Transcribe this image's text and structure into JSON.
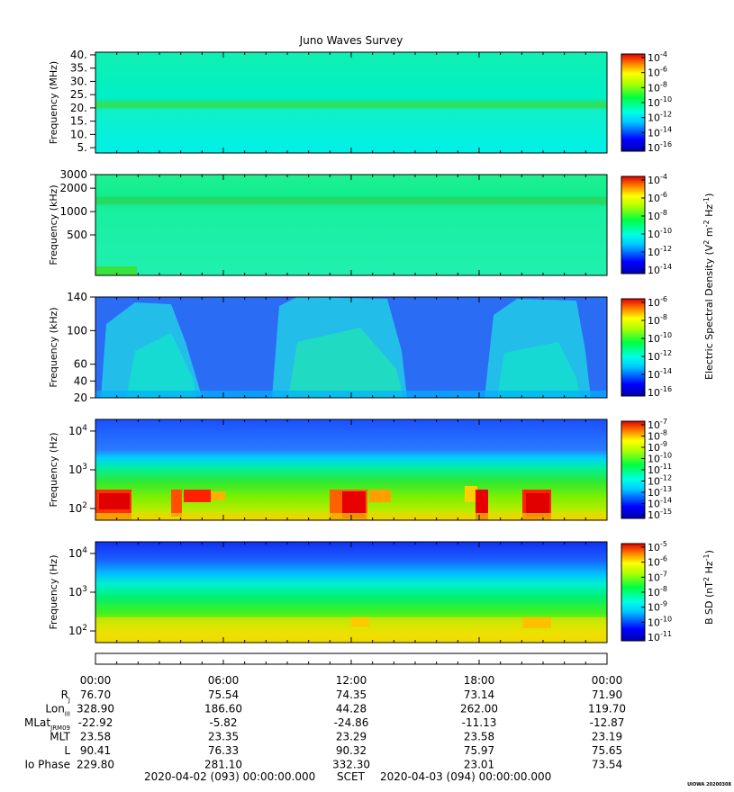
{
  "chart_data": {
    "type": "heatmap",
    "title": "Juno Waves Survey",
    "stamp": "UIOWA 20200308",
    "panels": [
      {
        "ylabel": "Frequency (MHz)",
        "yticks": [
          "40.",
          "35.",
          "30.",
          "25.",
          "20.",
          "15.",
          "10.",
          "5."
        ],
        "ytick_values": [
          40,
          35,
          30,
          25,
          20,
          15,
          10,
          5
        ],
        "ylim": [
          3,
          41
        ],
        "scale": "linear",
        "colorbar": {
          "ticks": [
            {
              "base": "10",
              "exp": "-4"
            },
            {
              "base": "10",
              "exp": "-6"
            },
            {
              "base": "10",
              "exp": "-8"
            },
            {
              "base": "10",
              "exp": "-10"
            },
            {
              "base": "10",
              "exp": "-12"
            },
            {
              "base": "10",
              "exp": "-14"
            },
            {
              "base": "10",
              "exp": "-16"
            }
          ]
        }
      },
      {
        "ylabel": "Frequency (kHz)",
        "yticks": [
          "3000",
          "2000",
          "1000",
          "500"
        ],
        "ytick_values": [
          3000,
          2000,
          1000,
          500
        ],
        "ylim": [
          150,
          3000
        ],
        "scale": "log",
        "colorbar": {
          "ticks": [
            {
              "base": "10",
              "exp": "-4"
            },
            {
              "base": "10",
              "exp": "-6"
            },
            {
              "base": "10",
              "exp": "-8"
            },
            {
              "base": "10",
              "exp": "-10"
            },
            {
              "base": "10",
              "exp": "-12"
            },
            {
              "base": "10",
              "exp": "-14"
            }
          ]
        }
      },
      {
        "ylabel": "Frequency (kHz)",
        "yticks": [
          "140",
          "100",
          "60",
          "40",
          "20"
        ],
        "ytick_values": [
          140,
          100,
          60,
          40,
          20
        ],
        "ylim": [
          20,
          140
        ],
        "scale": "linear",
        "colorbar": {
          "ticks": [
            {
              "base": "10",
              "exp": "-6"
            },
            {
              "base": "10",
              "exp": "-8"
            },
            {
              "base": "10",
              "exp": "-10"
            },
            {
              "base": "10",
              "exp": "-12"
            },
            {
              "base": "10",
              "exp": "-14"
            },
            {
              "base": "10",
              "exp": "-16"
            }
          ]
        }
      },
      {
        "ylabel": "Frequency (Hz)",
        "yticks": [
          {
            "base": "10",
            "exp": "4"
          },
          {
            "base": "10",
            "exp": "3"
          },
          {
            "base": "10",
            "exp": "2"
          }
        ],
        "ytick_values": [
          10000,
          1000,
          100
        ],
        "ylim": [
          50,
          20000
        ],
        "scale": "log",
        "colorbar": {
          "ticks": [
            {
              "base": "10",
              "exp": "-7"
            },
            {
              "base": "10",
              "exp": "-8"
            },
            {
              "base": "10",
              "exp": "-9"
            },
            {
              "base": "10",
              "exp": "-10"
            },
            {
              "base": "10",
              "exp": "-11"
            },
            {
              "base": "10",
              "exp": "-12"
            },
            {
              "base": "10",
              "exp": "-13"
            },
            {
              "base": "10",
              "exp": "-14"
            },
            {
              "base": "10",
              "exp": "-15"
            }
          ]
        }
      },
      {
        "ylabel": "Frequency (Hz)",
        "yticks": [
          {
            "base": "10",
            "exp": "4"
          },
          {
            "base": "10",
            "exp": "3"
          },
          {
            "base": "10",
            "exp": "2"
          }
        ],
        "ytick_values": [
          10000,
          1000,
          100
        ],
        "ylim": [
          50,
          20000
        ],
        "scale": "log",
        "colorbar": {
          "ticks": [
            {
              "base": "10",
              "exp": "-5"
            },
            {
              "base": "10",
              "exp": "-6"
            },
            {
              "base": "10",
              "exp": "-7"
            },
            {
              "base": "10",
              "exp": "-8"
            },
            {
              "base": "10",
              "exp": "-9"
            },
            {
              "base": "10",
              "exp": "-10"
            },
            {
              "base": "10",
              "exp": "-11"
            }
          ]
        }
      }
    ],
    "colorbar_label_e": "Electric Spectral Density (V",
    "colorbar_label_b": "B SD (nT",
    "x_time_labels": [
      "00:00",
      "06:00",
      "12:00",
      "18:00",
      "00:00"
    ],
    "x_hours": [
      0,
      6,
      12,
      18,
      24
    ],
    "ephemeris": [
      {
        "label": "R",
        "sub": "J",
        "values": [
          "76.70",
          "75.54",
          "74.35",
          "73.14",
          "71.90"
        ]
      },
      {
        "label": "Lon",
        "sub": "III",
        "values": [
          "328.90",
          "186.60",
          "44.28",
          "262.00",
          "119.70"
        ]
      },
      {
        "label": "MLat",
        "sub": "JRM09",
        "values": [
          "-22.92",
          "-5.82",
          "-24.86",
          "-11.13",
          "-12.87"
        ]
      },
      {
        "label": "MLT",
        "sub": "",
        "values": [
          "23.58",
          "23.35",
          "23.29",
          "23.58",
          "23.19"
        ]
      },
      {
        "label": "L",
        "sub": "",
        "values": [
          "90.41",
          "76.33",
          "90.32",
          "75.97",
          "75.65"
        ]
      },
      {
        "label": "Io Phase",
        "sub": "",
        "values": [
          "229.80",
          "281.10",
          "332.30",
          "23.01",
          "73.54"
        ]
      }
    ],
    "footer_start": "2020-04-02 (093) 00:00:00.000",
    "footer_mid": "SCET",
    "footer_end": "2020-04-03 (094) 00:00:00.000"
  }
}
